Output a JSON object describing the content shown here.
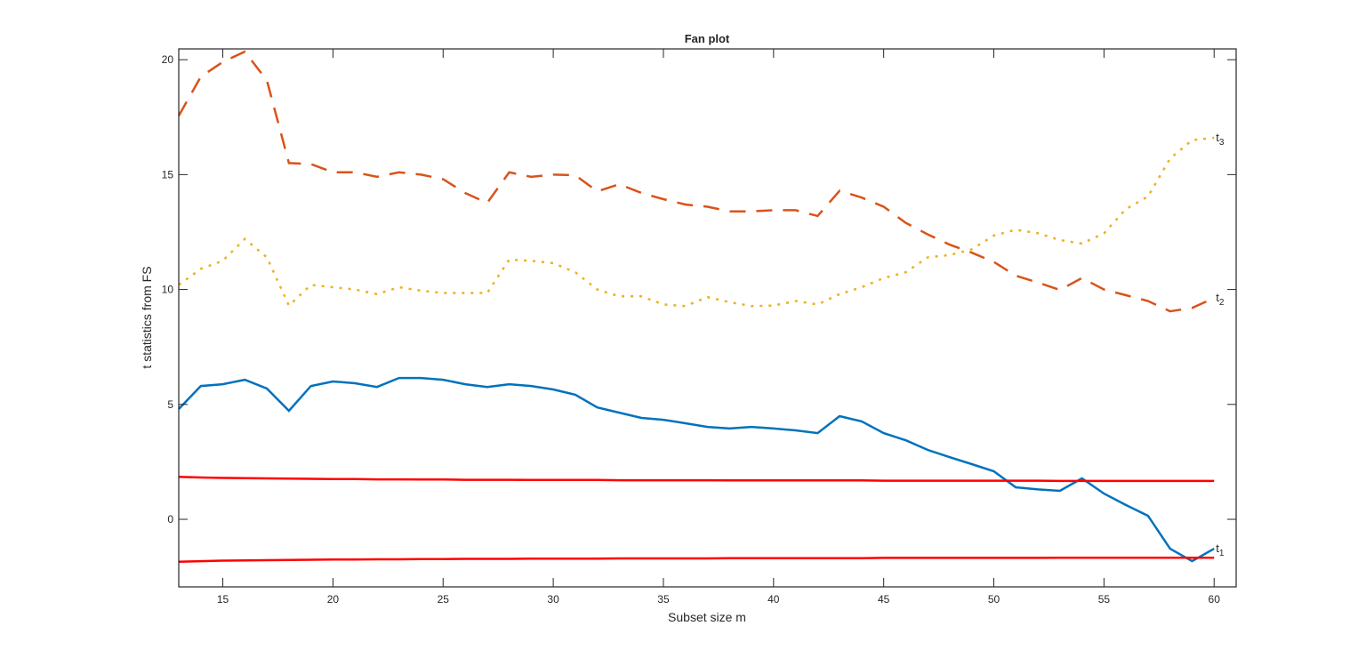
{
  "chart_data": {
    "type": "line",
    "title": "Fan plot",
    "xlabel": "Subset size m",
    "ylabel": "t statistics from FS",
    "xlim": [
      13,
      61
    ],
    "ylim": [
      -2.94,
      20.47
    ],
    "xticks": [
      15,
      20,
      25,
      30,
      35,
      40,
      45,
      50,
      55,
      60
    ],
    "yticks": [
      0,
      5,
      10,
      15,
      20
    ],
    "grid": false,
    "x": [
      13,
      14,
      15,
      16,
      17,
      18,
      19,
      20,
      21,
      22,
      23,
      24,
      25,
      26,
      27,
      28,
      29,
      30,
      31,
      32,
      33,
      34,
      35,
      36,
      37,
      38,
      39,
      40,
      41,
      42,
      43,
      44,
      45,
      46,
      47,
      48,
      49,
      50,
      51,
      52,
      53,
      54,
      55,
      56,
      57,
      58,
      59,
      60
    ],
    "series": [
      {
        "name": "t1",
        "label_base": "t",
        "label_sub": "1",
        "color": "#0072BD",
        "style": "solid",
        "values": [
          4.8,
          5.8,
          5.88,
          6.07,
          5.69,
          4.72,
          5.8,
          6.0,
          5.92,
          5.76,
          6.15,
          6.15,
          6.07,
          5.88,
          5.76,
          5.88,
          5.8,
          5.65,
          5.42,
          4.87,
          4.64,
          4.41,
          4.33,
          4.18,
          4.02,
          3.95,
          4.02,
          3.95,
          3.87,
          3.75,
          4.49,
          4.26,
          3.75,
          3.44,
          3.02,
          2.7,
          2.4,
          2.09,
          1.39,
          1.3,
          1.24,
          1.78,
          1.12,
          0.62,
          0.15,
          -1.28,
          -1.82,
          -1.28
        ]
      },
      {
        "name": "t2",
        "label_base": "t",
        "label_sub": "2",
        "color": "#D95319",
        "style": "dashed",
        "values": [
          17.56,
          19.26,
          19.9,
          20.35,
          19.1,
          15.5,
          15.46,
          15.1,
          15.1,
          14.9,
          15.1,
          15.0,
          14.8,
          14.2,
          13.77,
          15.1,
          14.9,
          15.0,
          14.97,
          14.27,
          14.58,
          14.2,
          13.93,
          13.7,
          13.6,
          13.4,
          13.4,
          13.45,
          13.45,
          13.2,
          14.3,
          14.0,
          13.6,
          12.9,
          12.4,
          11.95,
          11.6,
          11.2,
          10.6,
          10.3,
          9.98,
          10.5,
          10.0,
          9.75,
          9.5,
          9.05,
          9.2,
          9.63
        ]
      },
      {
        "name": "t3",
        "label_base": "t",
        "label_sub": "3",
        "color": "#EDB120",
        "style": "dotted",
        "values": [
          10.2,
          10.9,
          11.25,
          12.2,
          11.4,
          9.3,
          10.2,
          10.1,
          10.0,
          9.8,
          10.1,
          9.95,
          9.85,
          9.85,
          9.85,
          11.3,
          11.25,
          11.15,
          10.75,
          10.0,
          9.7,
          9.7,
          9.35,
          9.28,
          9.67,
          9.45,
          9.28,
          9.3,
          9.5,
          9.35,
          9.8,
          10.1,
          10.5,
          10.75,
          11.4,
          11.5,
          11.75,
          12.35,
          12.6,
          12.45,
          12.15,
          12.0,
          12.45,
          13.5,
          14.05,
          15.7,
          16.5,
          16.6
        ]
      },
      {
        "color": "#FF0000",
        "style": "solid",
        "values": [
          1.85,
          1.82,
          1.8,
          1.79,
          1.78,
          1.77,
          1.76,
          1.75,
          1.75,
          1.74,
          1.74,
          1.73,
          1.73,
          1.72,
          1.72,
          1.72,
          1.71,
          1.71,
          1.71,
          1.71,
          1.7,
          1.7,
          1.7,
          1.7,
          1.7,
          1.69,
          1.69,
          1.69,
          1.69,
          1.69,
          1.69,
          1.69,
          1.68,
          1.68,
          1.68,
          1.68,
          1.68,
          1.68,
          1.68,
          1.68,
          1.67,
          1.67,
          1.67,
          1.67,
          1.67,
          1.67,
          1.67,
          1.67
        ]
      },
      {
        "color": "#FF0000",
        "style": "solid",
        "values": [
          -1.85,
          -1.82,
          -1.8,
          -1.79,
          -1.78,
          -1.77,
          -1.76,
          -1.75,
          -1.75,
          -1.74,
          -1.74,
          -1.73,
          -1.73,
          -1.72,
          -1.72,
          -1.72,
          -1.71,
          -1.71,
          -1.71,
          -1.71,
          -1.7,
          -1.7,
          -1.7,
          -1.7,
          -1.7,
          -1.69,
          -1.69,
          -1.69,
          -1.69,
          -1.69,
          -1.69,
          -1.69,
          -1.68,
          -1.68,
          -1.68,
          -1.68,
          -1.68,
          -1.68,
          -1.68,
          -1.68,
          -1.67,
          -1.67,
          -1.67,
          -1.67,
          -1.67,
          -1.67,
          -1.67,
          -1.67
        ]
      }
    ]
  }
}
